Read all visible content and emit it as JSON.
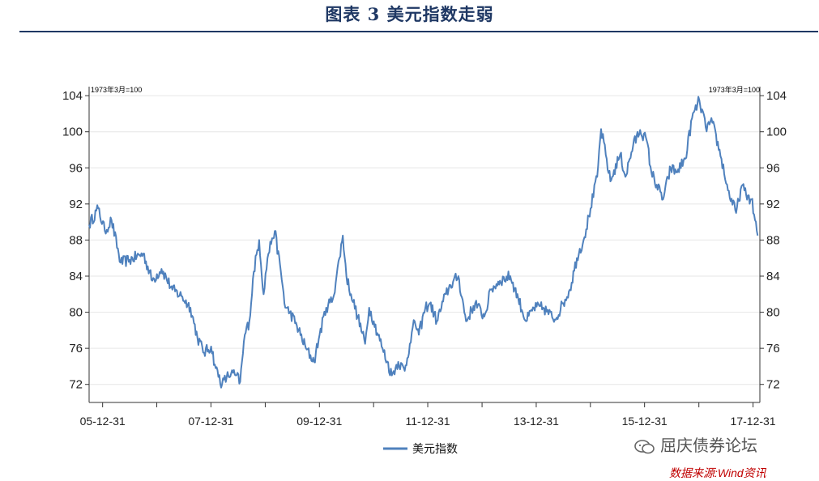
{
  "header": {
    "title": "图表 3    美元指数走弱"
  },
  "chart_data": {
    "type": "line",
    "title": "",
    "xlabel": "",
    "ylabel": "",
    "unit_note_left": "1973年3月=100",
    "unit_note_right": "1973年3月=100",
    "ylim": [
      70,
      105
    ],
    "yticks": [
      72,
      76,
      80,
      84,
      88,
      92,
      96,
      100,
      104
    ],
    "xlim": [
      "2005-10-01",
      "2018-02-15"
    ],
    "xticks": [
      "05-12-31",
      "07-12-31",
      "09-12-31",
      "11-12-31",
      "13-12-31",
      "15-12-31",
      "17-12-31"
    ],
    "xtick_dates": [
      "2005-12-31",
      "2007-12-31",
      "2009-12-31",
      "2011-12-31",
      "2013-12-31",
      "2015-12-31",
      "2017-12-31"
    ],
    "grid": true,
    "legend": "bottom",
    "series": [
      {
        "name": "美元指数",
        "color": "#4f81bd",
        "x": [
          "2005-10-01",
          "2005-12-01",
          "2006-01-15",
          "2006-03-01",
          "2006-05-01",
          "2006-07-01",
          "2006-10-01",
          "2006-12-01",
          "2007-02-01",
          "2007-04-15",
          "2007-06-15",
          "2007-08-15",
          "2007-10-01",
          "2007-11-15",
          "2008-01-01",
          "2008-02-01",
          "2008-03-15",
          "2008-04-15",
          "2008-05-15",
          "2008-06-15",
          "2008-07-15",
          "2008-08-15",
          "2008-09-15",
          "2008-10-15",
          "2008-11-20",
          "2008-12-20",
          "2009-01-15",
          "2009-02-15",
          "2009-03-05",
          "2009-04-15",
          "2009-05-15",
          "2009-06-15",
          "2009-08-01",
          "2009-10-01",
          "2009-11-25",
          "2010-01-01",
          "2010-02-15",
          "2010-04-01",
          "2010-05-15",
          "2010-06-07",
          "2010-07-01",
          "2010-08-01",
          "2010-09-15",
          "2010-11-04",
          "2010-12-01",
          "2011-01-01",
          "2011-03-01",
          "2011-05-03",
          "2011-06-15",
          "2011-07-29",
          "2011-09-01",
          "2011-10-04",
          "2011-11-01",
          "2011-12-15",
          "2012-01-15",
          "2012-03-01",
          "2012-05-01",
          "2012-06-01",
          "2012-07-24",
          "2012-09-14",
          "2012-11-15",
          "2013-01-15",
          "2013-03-01",
          "2013-05-01",
          "2013-07-09",
          "2013-09-01",
          "2013-10-24",
          "2013-12-15",
          "2014-02-15",
          "2014-05-06",
          "2014-07-01",
          "2014-08-15",
          "2014-10-01",
          "2014-11-15",
          "2015-01-01",
          "2015-02-15",
          "2015-03-13",
          "2015-05-15",
          "2015-07-20",
          "2015-08-24",
          "2015-10-15",
          "2015-12-01",
          "2016-01-15",
          "2016-02-15",
          "2016-05-03",
          "2016-06-24",
          "2016-08-01",
          "2016-10-01",
          "2016-11-15",
          "2017-01-03",
          "2017-02-15",
          "2017-04-01",
          "2017-06-01",
          "2017-07-15",
          "2017-09-08",
          "2017-10-15",
          "2017-11-15",
          "2017-12-20",
          "2018-01-31"
        ],
        "y": [
          89.7,
          91.5,
          89.0,
          90.2,
          85.5,
          85.8,
          86.5,
          83.5,
          84.8,
          82.5,
          81.8,
          80.5,
          77.2,
          75.5,
          76.2,
          73.8,
          72.0,
          72.8,
          73.2,
          73.0,
          72.3,
          77.5,
          79.0,
          84.5,
          88.0,
          82.0,
          86.0,
          88.2,
          89.0,
          84.5,
          80.5,
          80.0,
          78.5,
          76.0,
          74.5,
          77.5,
          80.5,
          81.5,
          86.0,
          88.5,
          84.0,
          82.0,
          79.5,
          76.5,
          80.5,
          79.0,
          76.0,
          73.0,
          74.5,
          73.5,
          76.5,
          79.0,
          77.5,
          80.5,
          81.0,
          79.0,
          82.0,
          83.0,
          84.0,
          79.0,
          81.0,
          79.5,
          82.5,
          83.5,
          84.0,
          81.5,
          79.0,
          80.5,
          80.5,
          79.2,
          81.0,
          82.5,
          86.0,
          88.0,
          91.5,
          95.0,
          100.3,
          94.5,
          97.5,
          95.0,
          98.5,
          100.2,
          99.0,
          95.5,
          92.5,
          96.0,
          95.5,
          97.0,
          101.5,
          103.5,
          100.5,
          101.0,
          97.0,
          93.5,
          91.0,
          94.0,
          93.0,
          92.5,
          88.5
        ]
      }
    ]
  },
  "legend": {
    "label": "美元指数"
  },
  "watermark": {
    "text": "屈庆债券论坛"
  },
  "source": {
    "text": "数据来源:Wind资讯"
  }
}
